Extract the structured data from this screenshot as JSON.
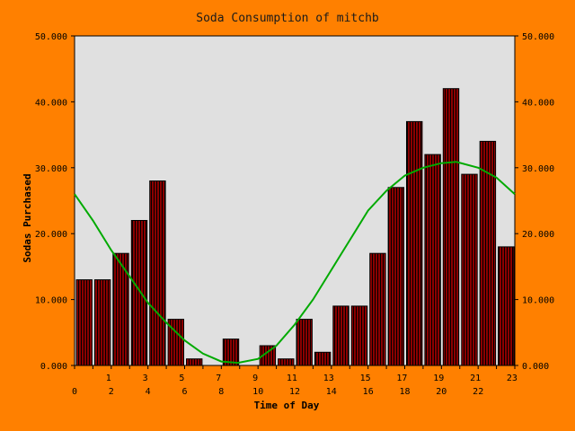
{
  "chart_data": {
    "type": "bar",
    "title": "Soda Consumption of mitchb",
    "xlabel": "Time of Day",
    "ylabel": "Sodas Purchased",
    "ylim": [
      0,
      50
    ],
    "y_ticks": [
      "0.000",
      "10.000",
      "20.000",
      "30.000",
      "40.000",
      "50.000"
    ],
    "y_tick_values": [
      0,
      10,
      20,
      30,
      40,
      50
    ],
    "x_ticks_row1": [
      "1",
      "3",
      "5",
      "7",
      "9",
      "11",
      "13",
      "15",
      "17",
      "19",
      "21",
      "23"
    ],
    "x_ticks_row2": [
      "0",
      "2",
      "4",
      "6",
      "8",
      "10",
      "12",
      "14",
      "16",
      "18",
      "20",
      "22"
    ],
    "categories": [
      0,
      1,
      2,
      3,
      4,
      5,
      6,
      7,
      8,
      9,
      10,
      11,
      12,
      13,
      14,
      15,
      16,
      17,
      18,
      19,
      20,
      21,
      22,
      23
    ],
    "values": [
      13,
      13,
      17,
      22,
      28,
      7,
      1,
      0,
      4,
      0,
      3,
      1,
      7,
      2,
      9,
      9,
      17,
      27,
      37,
      32,
      42,
      29,
      34,
      18
    ],
    "trend": {
      "x": [
        0,
        1,
        2,
        3,
        4,
        5,
        6,
        7,
        8,
        8.9,
        10,
        11,
        12,
        13,
        14,
        15,
        16,
        17,
        18,
        19,
        20,
        20.8,
        22,
        23,
        24
      ],
      "y": [
        26,
        22,
        17.5,
        13.5,
        9.5,
        6.5,
        3.8,
        1.8,
        0.6,
        0.4,
        1.0,
        3.0,
        6.2,
        10,
        14.5,
        19,
        23.5,
        26.5,
        28.8,
        30,
        30.7,
        30.9,
        30,
        28.5,
        26
      ]
    },
    "colors": {
      "plot_bg": "#e0e0e0",
      "bar_fill": "#8b0000",
      "bar_stripe": "#000000",
      "trend": "#00aa00",
      "frame": "#000000"
    },
    "grid": false,
    "legend": "none"
  }
}
